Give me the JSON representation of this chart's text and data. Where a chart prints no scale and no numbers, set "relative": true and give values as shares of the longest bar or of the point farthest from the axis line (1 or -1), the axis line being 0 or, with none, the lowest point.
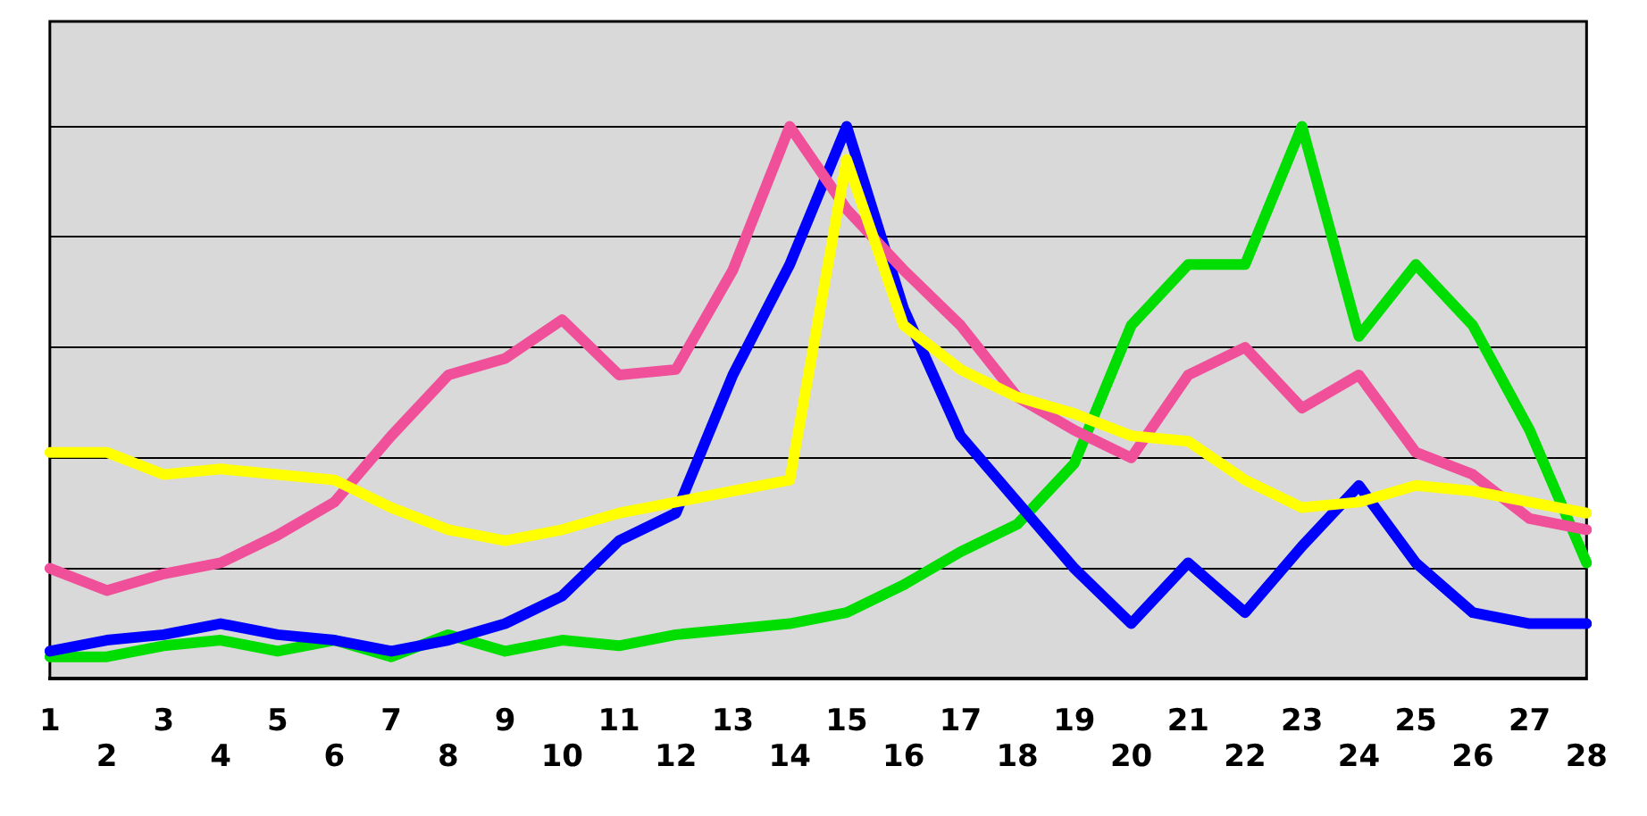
{
  "chart_data": {
    "type": "line",
    "relative": true,
    "grid": "y",
    "legend": false,
    "marker": "none",
    "line_style": "solid",
    "categories": [
      "1",
      "2",
      "3",
      "4",
      "5",
      "6",
      "7",
      "8",
      "9",
      "10",
      "11",
      "12",
      "13",
      "14",
      "15",
      "16",
      "17",
      "18",
      "19",
      "20",
      "21",
      "22",
      "23",
      "24",
      "25",
      "26",
      "27",
      "28"
    ],
    "series": [
      {
        "color": "#ffff00",
        "values": [
          0.41,
          0.41,
          0.37,
          0.38,
          0.37,
          0.36,
          0.31,
          0.27,
          0.25,
          0.27,
          0.3,
          0.32,
          0.34,
          0.36,
          0.94,
          0.64,
          0.56,
          0.51,
          0.48,
          0.44,
          0.43,
          0.36,
          0.31,
          0.32,
          0.35,
          0.34,
          0.32,
          0.3
        ]
      },
      {
        "color": "#f0509a",
        "values": [
          0.2,
          0.16,
          0.19,
          0.21,
          0.26,
          0.32,
          0.44,
          0.55,
          0.58,
          0.65,
          0.55,
          0.56,
          0.74,
          1.0,
          0.85,
          0.74,
          0.64,
          0.51,
          0.45,
          0.4,
          0.55,
          0.6,
          0.49,
          0.55,
          0.41,
          0.37,
          0.29,
          0.27
        ]
      },
      {
        "color": "#0000ff",
        "values": [
          0.05,
          0.07,
          0.08,
          0.1,
          0.08,
          0.07,
          0.05,
          0.07,
          0.1,
          0.15,
          0.25,
          0.3,
          0.55,
          0.75,
          1.0,
          0.67,
          0.44,
          0.32,
          0.2,
          0.1,
          0.21,
          0.12,
          0.24,
          0.35,
          0.21,
          0.12,
          0.1,
          0.1
        ]
      },
      {
        "color": "#00dd00",
        "values": [
          0.04,
          0.04,
          0.06,
          0.07,
          0.05,
          0.07,
          0.04,
          0.08,
          0.05,
          0.07,
          0.06,
          0.08,
          0.09,
          0.1,
          0.12,
          0.17,
          0.23,
          0.28,
          0.39,
          0.64,
          0.75,
          0.75,
          1.0,
          0.62,
          0.75,
          0.64,
          0.45,
          0.21
        ]
      }
    ]
  }
}
